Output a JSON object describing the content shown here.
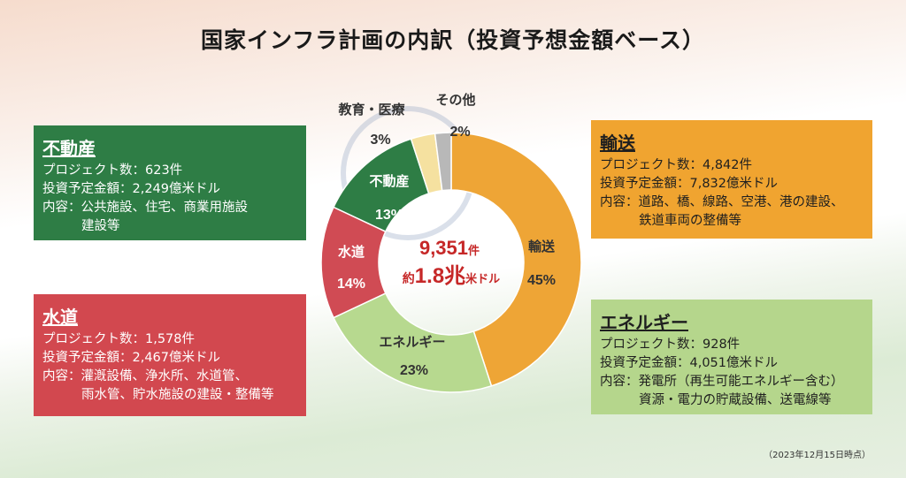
{
  "title": "国家インフラ計画の内訳（投資予想金額ベース）",
  "chart_data": {
    "type": "pie",
    "variant": "donut",
    "categories": [
      "輸送",
      "エネルギー",
      "水道",
      "不動産",
      "教育・医療",
      "その他"
    ],
    "values": [
      45,
      23,
      14,
      13,
      3,
      2
    ],
    "labels": [
      "45%",
      "23%",
      "14%",
      "13%",
      "3%",
      "2%"
    ],
    "colors": [
      "#eea536",
      "#b7d98f",
      "#d04b54",
      "#2e7d45",
      "#f5e1a0",
      "#b8b8b8"
    ],
    "center": {
      "count": "9,351",
      "count_unit": "件",
      "amount_prefix": "約",
      "amount": "1.8兆",
      "amount_unit": "米ドル"
    }
  },
  "boxes": {
    "real_estate": {
      "title": "不動産",
      "projects": "プロジェクト数：623件",
      "investment": "投資予定金額：2,249億米ドル",
      "content1": "内容：公共施設、住宅、商業用施設",
      "content2": "建設等"
    },
    "water": {
      "title": "水道",
      "projects": "プロジェクト数：1,578件",
      "investment": "投資予定金額：2,467億米ドル",
      "content1": "内容：灌漑設備、浄水所、水道管、",
      "content2": "雨水管、貯水施設の建設・整備等"
    },
    "transport": {
      "title": "輸送",
      "projects": "プロジェクト数：4,842件",
      "investment": "投資予定金額：7,832億米ドル",
      "content1": "内容：道路、橋、線路、空港、港の建設、",
      "content2": "鉄道車両の整備等"
    },
    "energy": {
      "title": "エネルギー",
      "projects": "プロジェクト数：928件",
      "investment": "投資予定金額：4,051億米ドル",
      "content1": "内容：発電所（再生可能エネルギー含む）",
      "content2": "資源・電力の貯蔵設備、送電線等"
    }
  },
  "footnote": "（2023年12月15日時点）"
}
